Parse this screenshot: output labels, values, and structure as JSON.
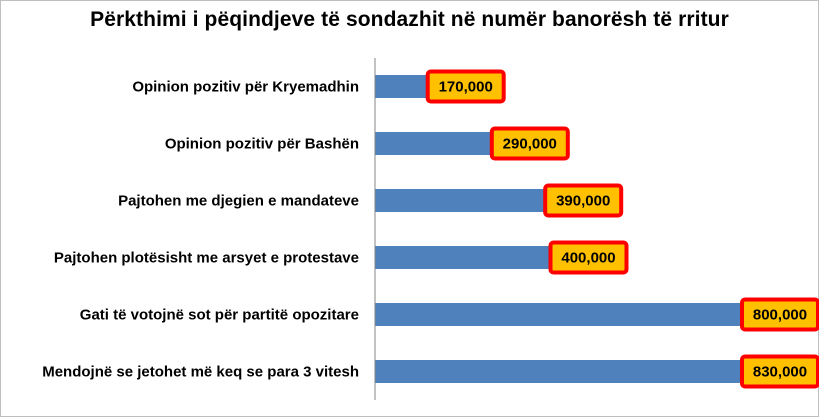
{
  "colors": {
    "bar": "#4f81bd",
    "label_fill": "#ffc000",
    "label_border": "#ff0000",
    "axis": "#868686"
  },
  "chart_data": {
    "type": "bar",
    "orientation": "horizontal",
    "title": "Përkthimi i pëqindjeve të sondazhit në numër banorësh të rritur",
    "categories": [
      "Opinion pozitiv për Kryemadhin",
      "Opinion pozitiv për Bashën",
      "Pajtohen me djegien e mandateve",
      "Pajtohen plotësisht me arsyet e protestave",
      "Gati të votojnë sot për partitë opozitare",
      "Mendojnë se jetohet më keq se para 3 vitesh"
    ],
    "values": [
      170000,
      290000,
      390000,
      400000,
      800000,
      830000
    ],
    "value_labels": [
      "170,000",
      "290,000",
      "390,000",
      "400,000",
      "800,000",
      "830,000"
    ],
    "xlim": [
      0,
      830000
    ],
    "grid": false,
    "legend": "none"
  }
}
